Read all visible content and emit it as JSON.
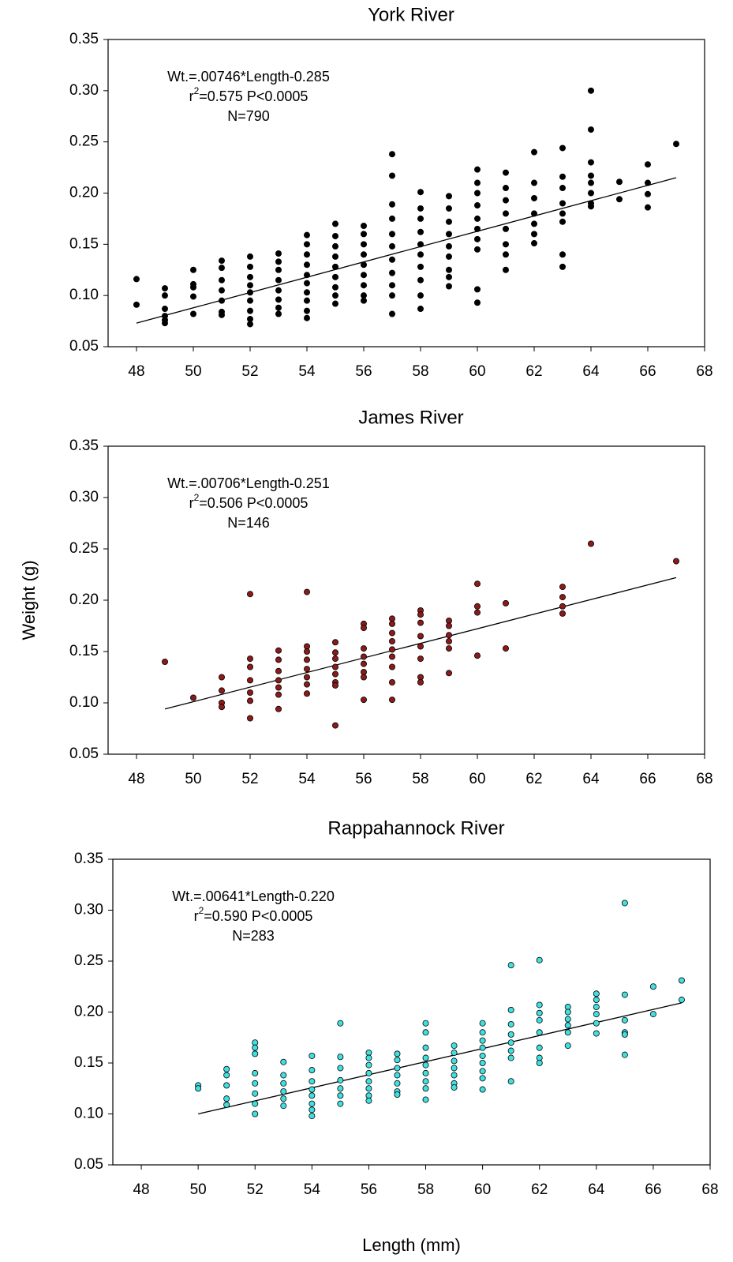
{
  "chart_data": [
    {
      "type": "scatter",
      "title": "York River",
      "annotation": [
        [
          {
            "text": "Wt.=.00746*Length-0.285"
          }
        ],
        [
          {
            "text": "r"
          },
          {
            "text": "2",
            "sup": true
          },
          {
            "text": "=0.575  P<0.0005"
          }
        ],
        [
          {
            "text": "N=790"
          }
        ]
      ],
      "color": "#000000",
      "x": [
        48,
        48,
        49,
        49,
        49,
        49,
        49,
        49,
        50,
        50,
        50,
        50,
        50,
        51,
        51,
        51,
        51,
        51,
        51,
        51,
        52,
        52,
        52,
        52,
        52,
        52,
        52,
        52,
        52,
        53,
        53,
        53,
        53,
        53,
        53,
        53,
        53,
        54,
        54,
        54,
        54,
        54,
        54,
        54,
        54,
        54,
        54,
        55,
        55,
        55,
        55,
        55,
        55,
        55,
        55,
        55,
        56,
        56,
        56,
        56,
        56,
        56,
        56,
        56,
        56,
        57,
        57,
        57,
        57,
        57,
        57,
        57,
        57,
        57,
        57,
        57,
        58,
        58,
        58,
        58,
        58,
        58,
        58,
        58,
        58,
        58,
        59,
        59,
        59,
        59,
        59,
        59,
        59,
        59,
        59,
        60,
        60,
        60,
        60,
        60,
        60,
        60,
        60,
        60,
        60,
        61,
        61,
        61,
        61,
        61,
        61,
        61,
        61,
        62,
        62,
        62,
        62,
        62,
        62,
        62,
        63,
        63,
        63,
        63,
        63,
        63,
        63,
        63,
        64,
        64,
        64,
        64,
        64,
        64,
        64,
        64,
        65,
        65,
        66,
        66,
        66,
        66,
        67
      ],
      "y": [
        0.116,
        0.091,
        0.107,
        0.1,
        0.087,
        0.08,
        0.076,
        0.073,
        0.125,
        0.111,
        0.108,
        0.099,
        0.082,
        0.134,
        0.127,
        0.115,
        0.105,
        0.095,
        0.084,
        0.081,
        0.138,
        0.128,
        0.118,
        0.11,
        0.103,
        0.095,
        0.085,
        0.077,
        0.072,
        0.141,
        0.133,
        0.125,
        0.115,
        0.105,
        0.096,
        0.088,
        0.082,
        0.159,
        0.15,
        0.14,
        0.13,
        0.12,
        0.112,
        0.103,
        0.095,
        0.085,
        0.078,
        0.17,
        0.158,
        0.148,
        0.138,
        0.128,
        0.118,
        0.108,
        0.1,
        0.092,
        0.168,
        0.16,
        0.15,
        0.14,
        0.13,
        0.12,
        0.11,
        0.1,
        0.095,
        0.238,
        0.217,
        0.189,
        0.175,
        0.16,
        0.148,
        0.135,
        0.122,
        0.11,
        0.1,
        0.082,
        0.201,
        0.185,
        0.175,
        0.162,
        0.15,
        0.14,
        0.128,
        0.115,
        0.1,
        0.087,
        0.197,
        0.185,
        0.172,
        0.16,
        0.148,
        0.138,
        0.125,
        0.118,
        0.109,
        0.223,
        0.21,
        0.2,
        0.188,
        0.175,
        0.165,
        0.155,
        0.145,
        0.106,
        0.093,
        0.22,
        0.205,
        0.193,
        0.18,
        0.165,
        0.15,
        0.14,
        0.125,
        0.24,
        0.21,
        0.195,
        0.18,
        0.17,
        0.16,
        0.151,
        0.244,
        0.216,
        0.205,
        0.19,
        0.18,
        0.172,
        0.14,
        0.128,
        0.3,
        0.262,
        0.23,
        0.217,
        0.21,
        0.2,
        0.19,
        0.187,
        0.211,
        0.194,
        0.228,
        0.21,
        0.199,
        0.186,
        0.248
      ],
      "fit": {
        "x": [
          48,
          67
        ],
        "y": [
          0.073,
          0.215
        ]
      },
      "xlim": [
        47,
        68
      ],
      "xticks": [
        48,
        50,
        52,
        54,
        56,
        58,
        60,
        62,
        64,
        66,
        68
      ],
      "ylim": [
        0.05,
        0.35
      ],
      "yticks": [
        0.05,
        {
          "value": 0.1,
          "label": "0.10"
        },
        0.15,
        {
          "value": 0.2,
          "label": "0.20"
        },
        0.25,
        {
          "value": 0.3,
          "label": "0.30"
        },
        0.35
      ]
    },
    {
      "type": "scatter",
      "title": "James River",
      "ylabel": "Weight (g)",
      "annotation": [
        [
          {
            "text": "Wt.=.00706*Length-0.251"
          }
        ],
        [
          {
            "text": "r"
          },
          {
            "text": "2",
            "sup": true
          },
          {
            "text": "=0.506  P<0.0005"
          }
        ],
        [
          {
            "text": "N=146"
          }
        ]
      ],
      "color": "#8b1a1a",
      "x": [
        49,
        50,
        51,
        51,
        51,
        51,
        52,
        52,
        52,
        52,
        52,
        52,
        52,
        53,
        53,
        53,
        53,
        53,
        53,
        53,
        54,
        54,
        54,
        54,
        54,
        54,
        54,
        54,
        55,
        55,
        55,
        55,
        55,
        55,
        55,
        55,
        56,
        56,
        56,
        56,
        56,
        56,
        56,
        56,
        57,
        57,
        57,
        57,
        57,
        57,
        57,
        57,
        57,
        58,
        58,
        58,
        58,
        58,
        58,
        58,
        58,
        59,
        59,
        59,
        59,
        59,
        59,
        60,
        60,
        60,
        60,
        61,
        61,
        63,
        63,
        63,
        63,
        64,
        67
      ],
      "y": [
        0.14,
        0.105,
        0.125,
        0.112,
        0.1,
        0.096,
        0.206,
        0.143,
        0.135,
        0.122,
        0.11,
        0.102,
        0.085,
        0.151,
        0.142,
        0.131,
        0.122,
        0.115,
        0.108,
        0.094,
        0.208,
        0.155,
        0.15,
        0.142,
        0.133,
        0.125,
        0.118,
        0.109,
        0.159,
        0.149,
        0.143,
        0.135,
        0.128,
        0.12,
        0.117,
        0.078,
        0.177,
        0.173,
        0.153,
        0.145,
        0.138,
        0.13,
        0.125,
        0.103,
        0.182,
        0.177,
        0.168,
        0.16,
        0.152,
        0.145,
        0.135,
        0.12,
        0.103,
        0.19,
        0.186,
        0.178,
        0.165,
        0.155,
        0.143,
        0.125,
        0.12,
        0.18,
        0.175,
        0.166,
        0.16,
        0.153,
        0.129,
        0.216,
        0.194,
        0.188,
        0.146,
        0.197,
        0.153,
        0.213,
        0.203,
        0.194,
        0.187,
        0.255,
        0.238
      ],
      "fit": {
        "x": [
          49,
          67
        ],
        "y": [
          0.094,
          0.222
        ]
      },
      "xlim": [
        47,
        68
      ],
      "xticks": [
        48,
        50,
        52,
        54,
        56,
        58,
        60,
        62,
        64,
        66,
        68
      ],
      "ylim": [
        0.05,
        0.35
      ],
      "yticks": [
        0.05,
        {
          "value": 0.1,
          "label": "0.10"
        },
        0.15,
        {
          "value": 0.2,
          "label": "0.20"
        },
        0.25,
        {
          "value": 0.3,
          "label": "0.30"
        },
        0.35
      ]
    },
    {
      "type": "scatter",
      "title": "Rappahannock River",
      "xlabel": "Length (mm)",
      "annotation": [
        [
          {
            "text": "Wt.=.00641*Length-0.220"
          }
        ],
        [
          {
            "text": "r"
          },
          {
            "text": "2",
            "sup": true
          },
          {
            "text": "=0.590  P<0.0005"
          }
        ],
        [
          {
            "text": "N=283"
          }
        ]
      ],
      "color": "#40e0e0",
      "x": [
        50,
        50,
        51,
        51,
        51,
        51,
        51,
        52,
        52,
        52,
        52,
        52,
        52,
        52,
        52,
        53,
        53,
        53,
        53,
        53,
        53,
        54,
        54,
        54,
        54,
        54,
        54,
        54,
        54,
        55,
        55,
        55,
        55,
        55,
        55,
        55,
        56,
        56,
        56,
        56,
        56,
        56,
        56,
        56,
        57,
        57,
        57,
        57,
        57,
        57,
        57,
        58,
        58,
        58,
        58,
        58,
        58,
        58,
        58,
        58,
        59,
        59,
        59,
        59,
        59,
        59,
        59,
        60,
        60,
        60,
        60,
        60,
        60,
        60,
        60,
        60,
        61,
        61,
        61,
        61,
        61,
        61,
        61,
        61,
        62,
        62,
        62,
        62,
        62,
        62,
        62,
        62,
        63,
        63,
        63,
        63,
        63,
        63,
        64,
        64,
        64,
        64,
        64,
        64,
        65,
        65,
        65,
        65,
        65,
        65,
        66,
        66,
        67,
        67
      ],
      "y": [
        0.128,
        0.125,
        0.144,
        0.138,
        0.128,
        0.115,
        0.109,
        0.17,
        0.165,
        0.159,
        0.14,
        0.13,
        0.12,
        0.11,
        0.1,
        0.151,
        0.138,
        0.13,
        0.122,
        0.115,
        0.108,
        0.157,
        0.143,
        0.132,
        0.124,
        0.118,
        0.11,
        0.104,
        0.098,
        0.189,
        0.156,
        0.145,
        0.133,
        0.125,
        0.118,
        0.11,
        0.16,
        0.155,
        0.148,
        0.14,
        0.132,
        0.125,
        0.118,
        0.113,
        0.159,
        0.153,
        0.145,
        0.138,
        0.13,
        0.122,
        0.119,
        0.189,
        0.18,
        0.165,
        0.155,
        0.148,
        0.14,
        0.132,
        0.125,
        0.114,
        0.167,
        0.16,
        0.152,
        0.145,
        0.138,
        0.13,
        0.126,
        0.189,
        0.18,
        0.172,
        0.165,
        0.157,
        0.15,
        0.142,
        0.135,
        0.124,
        0.246,
        0.202,
        0.188,
        0.178,
        0.17,
        0.162,
        0.155,
        0.132,
        0.251,
        0.207,
        0.199,
        0.192,
        0.18,
        0.165,
        0.155,
        0.15,
        0.205,
        0.2,
        0.193,
        0.187,
        0.18,
        0.167,
        0.218,
        0.212,
        0.205,
        0.198,
        0.189,
        0.179,
        0.307,
        0.217,
        0.192,
        0.18,
        0.178,
        0.158,
        0.225,
        0.198,
        0.231,
        0.212
      ],
      "fit": {
        "x": [
          50,
          67
        ],
        "y": [
          0.1,
          0.209
        ]
      },
      "xlim": [
        47,
        68
      ],
      "xticks": [
        48,
        50,
        52,
        54,
        56,
        58,
        60,
        62,
        64,
        66,
        68
      ],
      "ylim": [
        0.05,
        0.35
      ],
      "yticks": [
        0.05,
        {
          "value": 0.1,
          "label": "0.10"
        },
        0.15,
        {
          "value": 0.2,
          "label": "0.20"
        },
        0.25,
        {
          "value": 0.3,
          "label": "0.30"
        },
        0.35
      ]
    }
  ]
}
